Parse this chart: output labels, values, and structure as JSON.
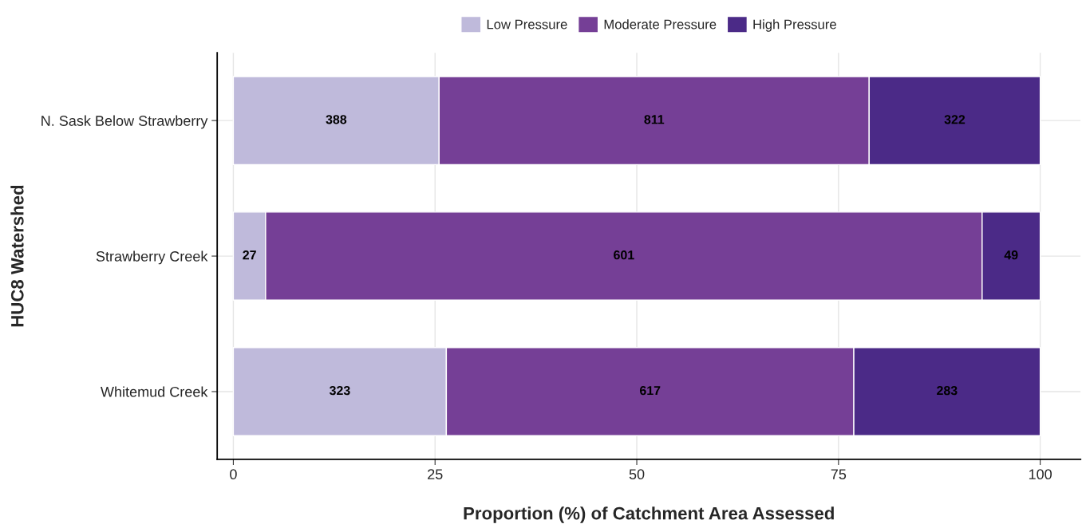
{
  "chart_data": {
    "type": "bar",
    "orientation": "horizontal",
    "stacked": true,
    "xlabel": "Proportion (%) of Catchment Area Assessed",
    "ylabel": "HUC8 Watershed",
    "categories": [
      "N. Sask Below Strawberry",
      "Strawberry Creek",
      "Whitemud Creek"
    ],
    "series": [
      {
        "name": "Low Pressure",
        "color": "#bfbadb",
        "values": [
          25.5,
          4.0,
          26.4
        ]
      },
      {
        "name": "Moderate Pressure",
        "color": "#753f96",
        "values": [
          53.3,
          88.8,
          50.5
        ]
      },
      {
        "name": "High Pressure",
        "color": "#4b2a87",
        "values": [
          21.2,
          7.2,
          23.1
        ]
      }
    ],
    "annotations": [
      "388",
      "811",
      "322",
      "27",
      "601",
      "49",
      "323",
      "617",
      "283"
    ],
    "xlim": [
      -2,
      105
    ],
    "xticks": [
      0,
      25,
      50,
      75,
      100
    ],
    "grid": true,
    "legend": "top"
  }
}
